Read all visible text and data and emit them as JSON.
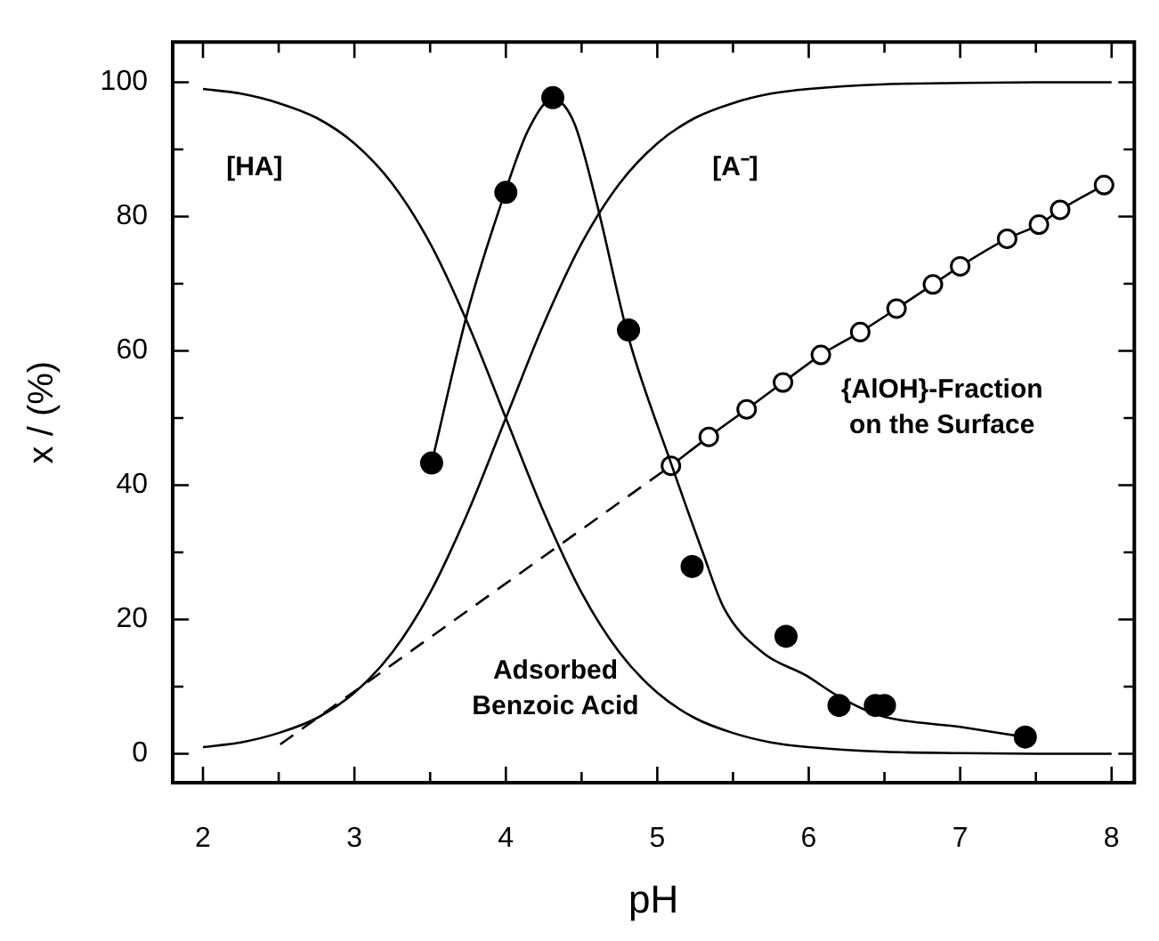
{
  "chart_data": {
    "type": "line",
    "xlabel": "pH",
    "ylabel": "x / (%)",
    "xlim": [
      1.8,
      8.15
    ],
    "ylim": [
      -4.3,
      106
    ],
    "xticks": [
      2,
      {
        "value": 2.5,
        "label": null
      },
      3,
      {
        "value": 3.5,
        "label": null
      },
      4,
      {
        "value": 4.5,
        "label": null
      },
      5,
      {
        "value": 5.5,
        "label": null
      },
      6,
      {
        "value": 6.5,
        "label": null
      },
      7,
      {
        "value": 7.5,
        "label": null
      },
      8
    ],
    "yticks": [
      0,
      {
        "value": 10,
        "label": null
      },
      20,
      {
        "value": 30,
        "label": null
      },
      40,
      {
        "value": 50,
        "label": null
      },
      60,
      {
        "value": 70,
        "label": null
      },
      80,
      {
        "value": 90,
        "label": null
      },
      100
    ],
    "grid": false,
    "legend": false,
    "series": [
      {
        "name": "[HA]",
        "color": "#000000",
        "marker": "none",
        "line_style": "solid",
        "x": [
          2,
          2.25,
          2.5,
          2.75,
          3,
          3.25,
          3.5,
          3.75,
          4,
          4.25,
          4.5,
          4.75,
          5,
          5.25,
          5.5,
          5.75,
          6,
          6.5,
          7,
          7.5,
          8
        ],
        "values": [
          99,
          98.3,
          96.9,
          94.7,
          90.9,
          84.9,
          76,
          64,
          50,
          36,
          24,
          15.1,
          9.1,
          5.3,
          3.1,
          1.7,
          1,
          0.3,
          0.1,
          0,
          0
        ]
      },
      {
        "name": "[A⁻]",
        "color": "#000000",
        "marker": "none",
        "line_style": "solid",
        "x": [
          2,
          2.25,
          2.5,
          2.75,
          3,
          3.25,
          3.5,
          3.75,
          4,
          4.25,
          4.5,
          4.75,
          5,
          5.25,
          5.5,
          5.75,
          6,
          6.5,
          7,
          7.5,
          8
        ],
        "values": [
          1,
          1.7,
          3.1,
          5.3,
          9.1,
          15.1,
          24,
          36,
          50,
          64,
          76,
          84.9,
          90.9,
          94.7,
          96.9,
          98.3,
          99,
          99.7,
          99.9,
          100,
          100
        ]
      },
      {
        "color": "#000000",
        "line_style": "solid",
        "x": [
          3.51,
          3.75,
          4.0,
          4.15,
          4.31,
          4.45,
          4.6,
          4.81,
          5.09,
          5.3,
          5.44,
          5.7,
          5.98,
          6.2,
          6.47,
          7.0,
          7.43
        ],
        "values": [
          43.3,
          66,
          84,
          93,
          97.5,
          94,
          82,
          62,
          43.3,
          30,
          21.7,
          15,
          11.7,
          8.5,
          5.7,
          4,
          2.5
        ]
      },
      {
        "type": "scatter",
        "color": "#000000",
        "marker": "circle",
        "x": [
          3.51,
          4.0,
          4.31,
          4.81,
          5.23,
          5.85,
          6.2,
          6.44,
          6.5,
          7.43
        ],
        "values": [
          43.3,
          83.6,
          97.7,
          63.1,
          27.9,
          17.5,
          7.2,
          7.2,
          7.2,
          2.5
        ]
      },
      {
        "color": "#000000",
        "line_style": "dashed",
        "x": [
          2.51,
          5.09
        ],
        "values": [
          1.4,
          42.9
        ]
      },
      {
        "name": "{AlOH}-Fraction on the Surface",
        "color": "#000000",
        "marker": "circle",
        "line_style": "solid",
        "x": [
          5.09,
          5.34,
          5.59,
          5.83,
          6.08,
          6.34,
          6.58,
          6.82,
          7.0,
          7.31,
          7.52,
          7.66,
          7.95
        ],
        "values": [
          42.9,
          47.2,
          51.3,
          55.3,
          59.4,
          62.8,
          66.3,
          69.9,
          72.6,
          76.7,
          78.8,
          81.0,
          84.7
        ]
      }
    ],
    "annotations": [
      "Adsorbed Benzoic Acid"
    ]
  }
}
